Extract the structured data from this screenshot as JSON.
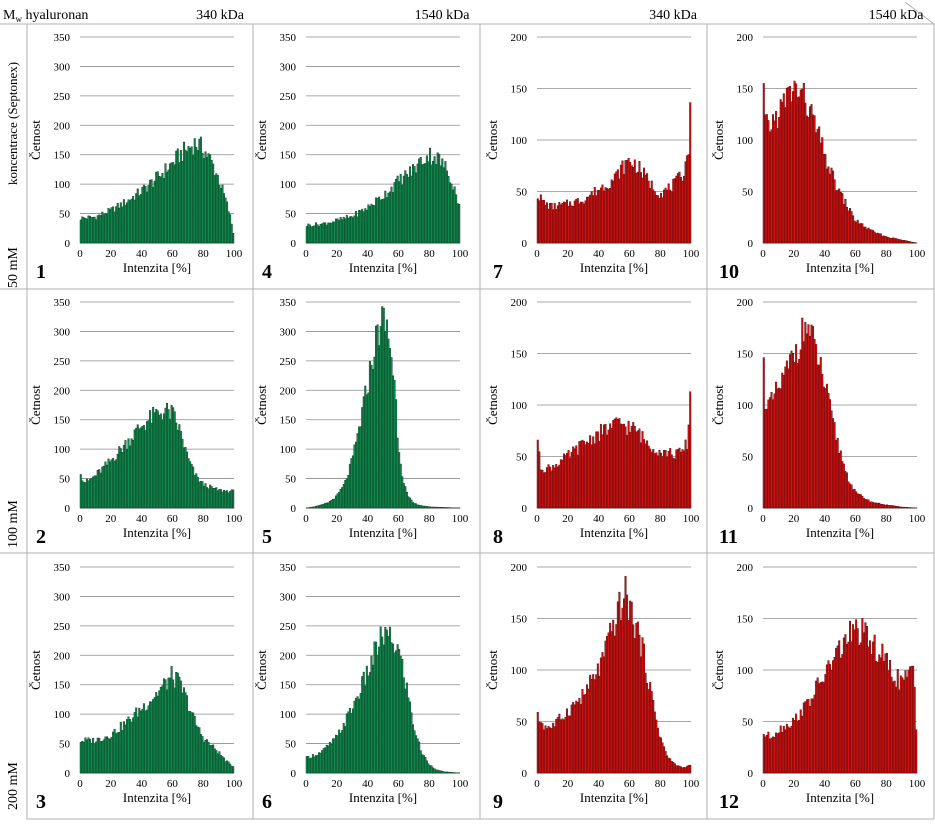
{
  "header": {
    "mw_label_main": "M",
    "mw_label_sub": "w",
    "mw_label_rest": " hyaluronan",
    "columns": [
      "340 kDa",
      "1540 kDa",
      "340 kDa",
      "1540 kDa"
    ]
  },
  "row_axis_label": "koncentrace (Septonex)",
  "rows": [
    "50 mM",
    "100 mM",
    "200 mM"
  ],
  "colors": {
    "green_fill": "#0f8a4e",
    "green_edge": "#0b3d22",
    "red_fill": "#d21212",
    "red_edge": "#5a0808",
    "grid": "#8c8c8c",
    "frame": "#b0b0b0"
  },
  "chart_data": [
    {
      "panel": "1",
      "type": "bar",
      "color": "green",
      "xlabel": "Intenzita [%]",
      "ylabel": "Četnost",
      "xlim": [
        0,
        100
      ],
      "ylim": [
        0,
        350
      ],
      "xticks": [
        "0",
        "20",
        "40",
        "60",
        "80",
        "100"
      ],
      "yticks": [
        "0",
        "50",
        "100",
        "150",
        "200",
        "250",
        "300",
        "350"
      ],
      "x": [
        0,
        10,
        20,
        30,
        40,
        50,
        60,
        65,
        70,
        75,
        80,
        85,
        90,
        95,
        98,
        100
      ],
      "values": [
        42,
        44,
        55,
        70,
        88,
        110,
        135,
        150,
        160,
        170,
        160,
        140,
        110,
        70,
        40,
        10
      ]
    },
    {
      "panel": "2",
      "type": "bar",
      "color": "green",
      "xlabel": "Intenzita [%]",
      "ylabel": "Četnost",
      "xlim": [
        0,
        100
      ],
      "ylim": [
        0,
        350
      ],
      "xticks": [
        "0",
        "20",
        "40",
        "60",
        "80",
        "100"
      ],
      "yticks": [
        "0",
        "50",
        "100",
        "150",
        "200",
        "250",
        "300",
        "350"
      ],
      "x": [
        0,
        2,
        5,
        10,
        20,
        30,
        40,
        50,
        55,
        60,
        65,
        70,
        75,
        80,
        90,
        100
      ],
      "values": [
        70,
        45,
        45,
        55,
        80,
        110,
        140,
        160,
        165,
        160,
        130,
        85,
        55,
        40,
        30,
        28
      ]
    },
    {
      "panel": "3",
      "type": "bar",
      "color": "green",
      "xlabel": "Intenzita [%]",
      "ylabel": "Četnost",
      "xlim": [
        0,
        100
      ],
      "ylim": [
        0,
        350
      ],
      "xticks": [
        "0",
        "20",
        "40",
        "60",
        "80",
        "100"
      ],
      "yticks": [
        "0",
        "50",
        "100",
        "150",
        "200",
        "250",
        "300",
        "350"
      ],
      "x": [
        0,
        10,
        20,
        30,
        40,
        50,
        55,
        60,
        65,
        70,
        75,
        80,
        90,
        95,
        100
      ],
      "values": [
        55,
        55,
        65,
        85,
        110,
        135,
        150,
        165,
        150,
        120,
        85,
        60,
        35,
        20,
        10
      ]
    },
    {
      "panel": "4",
      "type": "bar",
      "color": "green",
      "xlabel": "Intenzita [%]",
      "ylabel": "Četnost",
      "xlim": [
        0,
        100
      ],
      "ylim": [
        0,
        350
      ],
      "xticks": [
        "0",
        "20",
        "40",
        "60",
        "80",
        "100"
      ],
      "yticks": [
        "0",
        "50",
        "100",
        "150",
        "200",
        "250",
        "300",
        "350"
      ],
      "x": [
        0,
        10,
        20,
        30,
        40,
        50,
        60,
        70,
        75,
        80,
        85,
        90,
        95,
        100
      ],
      "values": [
        30,
        32,
        38,
        45,
        60,
        80,
        105,
        125,
        140,
        150,
        145,
        130,
        105,
        60
      ]
    },
    {
      "panel": "5",
      "type": "bar",
      "color": "green",
      "xlabel": "Intenzita [%]",
      "ylabel": "Četnost",
      "xlim": [
        0,
        100
      ],
      "ylim": [
        0,
        350
      ],
      "xticks": [
        "0",
        "20",
        "40",
        "60",
        "80",
        "100"
      ],
      "yticks": [
        "0",
        "50",
        "100",
        "150",
        "200",
        "250",
        "300",
        "350"
      ],
      "x": [
        0,
        5,
        10,
        15,
        20,
        25,
        30,
        35,
        40,
        45,
        48,
        50,
        53,
        55,
        58,
        60,
        63,
        66,
        70,
        75,
        80,
        90,
        100
      ],
      "values": [
        0,
        2,
        5,
        10,
        20,
        40,
        80,
        140,
        210,
        280,
        310,
        320,
        300,
        270,
        200,
        110,
        50,
        20,
        8,
        4,
        2,
        1,
        0
      ]
    },
    {
      "panel": "6",
      "type": "bar",
      "color": "green",
      "xlabel": "Intenzita [%]",
      "ylabel": "Četnost",
      "xlim": [
        0,
        100
      ],
      "ylim": [
        0,
        350
      ],
      "xticks": [
        "0",
        "20",
        "40",
        "60",
        "80",
        "100"
      ],
      "yticks": [
        "0",
        "50",
        "100",
        "150",
        "200",
        "250",
        "300",
        "350"
      ],
      "x": [
        0,
        10,
        20,
        30,
        40,
        45,
        50,
        55,
        60,
        65,
        70,
        75,
        80,
        85,
        90,
        100
      ],
      "values": [
        25,
        35,
        60,
        110,
        170,
        205,
        235,
        225,
        210,
        150,
        80,
        35,
        15,
        5,
        2,
        0
      ]
    },
    {
      "panel": "7",
      "type": "bar",
      "color": "red",
      "xlabel": "Intenzita [%]",
      "ylabel": "Četnost",
      "xlim": [
        0,
        100
      ],
      "ylim": [
        0,
        200
      ],
      "xticks": [
        "0",
        "20",
        "40",
        "60",
        "80",
        "100"
      ],
      "yticks": [
        "0",
        "50",
        "100",
        "150",
        "200"
      ],
      "x": [
        0,
        5,
        10,
        20,
        30,
        40,
        50,
        55,
        60,
        65,
        70,
        75,
        80,
        85,
        90,
        95,
        97,
        99,
        100
      ],
      "values": [
        48,
        38,
        35,
        38,
        42,
        52,
        62,
        72,
        80,
        75,
        65,
        55,
        48,
        52,
        58,
        68,
        80,
        100,
        150
      ]
    },
    {
      "panel": "8",
      "type": "bar",
      "color": "red",
      "xlabel": "Intenzita [%]",
      "ylabel": "Četnost",
      "xlim": [
        0,
        100
      ],
      "ylim": [
        0,
        200
      ],
      "xticks": [
        "0",
        "20",
        "40",
        "60",
        "80",
        "100"
      ],
      "yticks": [
        "0",
        "50",
        "100",
        "150",
        "200"
      ],
      "x": [
        0,
        2,
        5,
        10,
        20,
        30,
        40,
        50,
        55,
        60,
        65,
        70,
        80,
        90,
        95,
        98,
        100
      ],
      "values": [
        78,
        40,
        38,
        40,
        50,
        62,
        72,
        80,
        82,
        78,
        75,
        65,
        55,
        52,
        55,
        65,
        125
      ]
    },
    {
      "panel": "9",
      "type": "bar",
      "color": "red",
      "xlabel": "Intenzita [%]",
      "ylabel": "Četnost",
      "xlim": [
        0,
        100
      ],
      "ylim": [
        0,
        200
      ],
      "xticks": [
        "0",
        "20",
        "40",
        "60",
        "80",
        "100"
      ],
      "yticks": [
        "0",
        "50",
        "100",
        "150",
        "200"
      ],
      "x": [
        0,
        5,
        10,
        20,
        30,
        40,
        45,
        50,
        55,
        58,
        60,
        65,
        70,
        75,
        80,
        85,
        90,
        95,
        100
      ],
      "values": [
        55,
        45,
        45,
        60,
        75,
        100,
        120,
        145,
        165,
        175,
        160,
        140,
        110,
        70,
        35,
        15,
        8,
        5,
        8
      ]
    },
    {
      "panel": "10",
      "type": "bar",
      "color": "red",
      "xlabel": "Intenzita [%]",
      "ylabel": "Četnost",
      "xlim": [
        0,
        100
      ],
      "ylim": [
        0,
        200
      ],
      "xticks": [
        "0",
        "20",
        "40",
        "60",
        "80",
        "100"
      ],
      "yticks": [
        "0",
        "50",
        "100",
        "150",
        "200"
      ],
      "x": [
        0,
        1,
        3,
        5,
        10,
        15,
        20,
        25,
        30,
        35,
        40,
        45,
        50,
        55,
        60,
        70,
        80,
        90,
        100
      ],
      "values": [
        175,
        120,
        110,
        115,
        125,
        140,
        150,
        145,
        130,
        110,
        85,
        65,
        48,
        35,
        22,
        12,
        6,
        3,
        0
      ]
    },
    {
      "panel": "11",
      "type": "bar",
      "color": "red",
      "xlabel": "Intenzita [%]",
      "ylabel": "Četnost",
      "xlim": [
        0,
        100
      ],
      "ylim": [
        0,
        200
      ],
      "xticks": [
        "0",
        "20",
        "40",
        "60",
        "80",
        "100"
      ],
      "yticks": [
        "0",
        "50",
        "100",
        "150",
        "200"
      ],
      "x": [
        0,
        1,
        3,
        5,
        10,
        15,
        20,
        25,
        28,
        30,
        35,
        40,
        45,
        50,
        55,
        60,
        70,
        80,
        90,
        100
      ],
      "values": [
        165,
        110,
        100,
        100,
        115,
        130,
        150,
        165,
        180,
        170,
        150,
        120,
        85,
        55,
        30,
        15,
        6,
        3,
        1,
        0
      ]
    },
    {
      "panel": "12",
      "type": "bar",
      "color": "red",
      "xlabel": "Intenzita [%]",
      "ylabel": "Četnost",
      "xlim": [
        0,
        100
      ],
      "ylim": [
        0,
        200
      ],
      "xticks": [
        "0",
        "20",
        "40",
        "60",
        "80",
        "100"
      ],
      "yticks": [
        "0",
        "50",
        "100",
        "150",
        "200"
      ],
      "x": [
        0,
        5,
        10,
        20,
        30,
        40,
        50,
        55,
        60,
        65,
        70,
        75,
        80,
        85,
        90,
        95,
        98,
        100
      ],
      "values": [
        38,
        35,
        42,
        50,
        70,
        95,
        120,
        132,
        138,
        135,
        125,
        118,
        108,
        95,
        88,
        95,
        100,
        25
      ]
    }
  ]
}
